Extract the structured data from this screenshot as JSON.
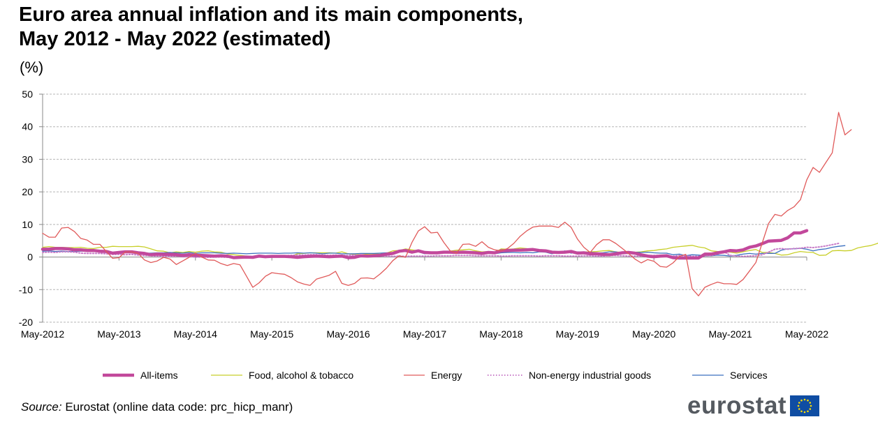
{
  "title": {
    "line1": "Euro area annual inflation and its main components,",
    "line2": "May 2012 - May 2022 (estimated)"
  },
  "unit": "(%)",
  "source": {
    "label": "Source:",
    "text": " Eurostat (online data code: prc_hicp_manr)"
  },
  "logo": {
    "text": "eurostat"
  },
  "colors": {
    "all_items": "#c2489b",
    "food": "#c8cf2a",
    "energy": "#e05a5a",
    "non_energy": "#c87cc8",
    "services": "#3a6fbf",
    "grid": "#b5b5b5",
    "eu_blue": "#0f4da3",
    "eu_star": "#ffdd00"
  },
  "chart_data": {
    "type": "line",
    "title": "Euro area annual inflation and its main components, May 2012 - May 2022 (estimated)",
    "ylabel": "(%)",
    "xlabel": "",
    "ylim": [
      -20,
      50
    ],
    "y_ticks": [
      50,
      40,
      30,
      20,
      10,
      0,
      -10,
      -20
    ],
    "x_tick_labels": [
      "May-2012",
      "May-2013",
      "May-2014",
      "May-2015",
      "May-2016",
      "May-2017",
      "May-2018",
      "May-2019",
      "May-2020",
      "May-2021",
      "May-2022"
    ],
    "grid": true,
    "legend_position": "bottom",
    "x_start": "May-2012",
    "x_end": "May-2022",
    "series": [
      {
        "name": "All-items",
        "style": "thick",
        "values": [
          2.4,
          2.4,
          2.6,
          2.6,
          2.5,
          2.2,
          2.2,
          2.0,
          2.0,
          1.8,
          1.7,
          1.2,
          1.4,
          1.6,
          1.6,
          1.3,
          1.1,
          0.7,
          0.9,
          0.8,
          0.8,
          0.7,
          0.5,
          0.7,
          0.5,
          0.5,
          0.4,
          0.3,
          0.4,
          0.3,
          -0.2,
          -0.1,
          0.0,
          -0.1,
          0.3,
          0.1,
          0.2,
          0.2,
          0.2,
          0.1,
          -0.1,
          0.1,
          0.2,
          0.3,
          0.2,
          0.1,
          0.2,
          0.3,
          -0.2,
          -0.1,
          0.4,
          0.3,
          0.4,
          0.5,
          0.9,
          1.1,
          1.8,
          2.0,
          1.5,
          1.9,
          1.4,
          1.3,
          1.3,
          1.5,
          1.5,
          1.4,
          1.5,
          1.4,
          1.3,
          1.1,
          1.4,
          1.3,
          1.9,
          2.0,
          2.1,
          2.1,
          2.2,
          2.3,
          2.0,
          1.9,
          1.5,
          1.4,
          1.5,
          1.7,
          1.2,
          1.3,
          1.0,
          1.0,
          0.8,
          0.7,
          1.0,
          1.3,
          1.4,
          1.2,
          0.7,
          0.3,
          0.1,
          0.3,
          0.4,
          -0.2,
          -0.3,
          -0.3,
          -0.3,
          -0.3,
          0.9,
          0.9,
          1.3,
          1.6,
          2.0,
          1.9,
          2.2,
          3.0,
          3.4,
          4.1,
          4.9,
          5.0,
          5.1,
          5.9,
          7.4,
          7.4,
          8.1
        ]
      },
      {
        "name": "Food, alcohol & tobacco",
        "style": "thin",
        "values": [
          3.0,
          3.2,
          3.0,
          3.0,
          2.9,
          2.9,
          3.0,
          2.7,
          2.6,
          3.0,
          3.0,
          3.3,
          3.2,
          3.2,
          3.2,
          3.3,
          3.1,
          2.5,
          1.9,
          1.8,
          1.3,
          1.6,
          1.4,
          1.7,
          1.5,
          1.8,
          1.9,
          1.6,
          1.5,
          1.0,
          0.7,
          0.5,
          0.3,
          0.0,
          0.0,
          0.1,
          -0.1,
          0.0,
          0.0,
          0.2,
          1.0,
          1.1,
          1.3,
          1.3,
          1.3,
          1.3,
          1.2,
          1.6,
          1.0,
          0.8,
          0.7,
          0.9,
          1.0,
          0.9,
          1.2,
          1.9,
          2.0,
          2.5,
          2.2,
          1.9,
          1.4,
          1.6,
          1.5,
          1.5,
          1.8,
          2.1,
          2.2,
          2.4,
          1.9,
          1.6,
          1.7,
          1.4,
          2.5,
          2.4,
          2.5,
          2.8,
          2.6,
          2.2,
          2.1,
          2.0,
          1.8,
          1.4,
          1.2,
          1.5,
          1.5,
          1.6,
          1.6,
          1.7,
          1.9,
          2.0,
          1.6,
          1.4,
          1.5,
          1.5,
          1.6,
          1.9,
          2.0,
          2.3,
          2.5,
          3.0,
          3.2,
          3.4,
          3.6,
          3.1,
          2.8,
          1.9,
          1.7,
          1.6,
          1.5,
          1.2,
          1.6,
          2.0,
          2.3,
          1.4,
          1.4,
          1.1,
          0.6,
          0.7,
          1.3,
          1.7,
          1.5,
          1.4,
          0.5,
          0.6,
          1.9,
          2.0,
          1.9,
          2.0,
          2.8,
          3.2,
          3.5,
          4.1,
          5.0,
          6.3,
          7.5
        ]
      },
      {
        "name": "Energy",
        "style": "thin",
        "values": [
          7.3,
          6.1,
          6.1,
          8.9,
          9.1,
          7.8,
          5.7,
          5.2,
          3.9,
          3.9,
          1.7,
          -0.4,
          -0.2,
          1.6,
          1.6,
          1.1,
          -0.9,
          -1.7,
          -1.2,
          -0.1,
          -0.6,
          -2.3,
          -1.2,
          -0.1,
          1.2,
          0.0,
          -0.9,
          -1.0,
          -2.0,
          -2.6,
          -2.0,
          -2.4,
          -5.8,
          -9.3,
          -7.9,
          -5.9,
          -4.8,
          -5.1,
          -5.3,
          -6.3,
          -7.6,
          -8.3,
          -8.7,
          -6.8,
          -6.2,
          -5.6,
          -4.4,
          -8.1,
          -8.7,
          -8.1,
          -6.5,
          -6.4,
          -6.7,
          -5.2,
          -3.4,
          -1.1,
          0.4,
          -0.1,
          4.5,
          8.0,
          9.3,
          7.4,
          7.6,
          4.5,
          1.9,
          1.2,
          3.9,
          4.0,
          3.3,
          4.7,
          3.0,
          2.2,
          1.9,
          2.6,
          4.2,
          6.4,
          8.0,
          9.2,
          9.5,
          9.5,
          9.5,
          9.1,
          10.7,
          9.1,
          5.5,
          3.0,
          1.4,
          3.8,
          5.3,
          5.3,
          4.2,
          2.7,
          1.1,
          -0.6,
          -1.8,
          -0.8,
          -1.3,
          -2.9,
          -3.1,
          -1.8,
          0.2,
          0.8,
          -9.7,
          -11.9,
          -9.3,
          -8.4,
          -7.7,
          -8.2,
          -8.2,
          -8.4,
          -6.9,
          -4.3,
          -1.7,
          4.3,
          10.3,
          13.1,
          12.6,
          14.3,
          15.4,
          17.6,
          23.7,
          27.5,
          26.0,
          29.0,
          32.0,
          44.4,
          37.5,
          39.1
        ]
      },
      {
        "name": "Non-energy industrial goods",
        "style": "dotted",
        "values": [
          1.4,
          1.5,
          1.4,
          1.6,
          1.6,
          1.5,
          1.2,
          1.1,
          1.1,
          1.1,
          1.0,
          0.8,
          0.8,
          0.7,
          0.8,
          0.6,
          0.5,
          0.4,
          0.3,
          0.2,
          0.2,
          0.3,
          0.1,
          0.1,
          0.0,
          0.0,
          -0.1,
          0.0,
          0.0,
          -0.1,
          -0.2,
          -0.3,
          -0.2,
          0.0,
          0.0,
          0.2,
          0.3,
          0.4,
          0.4,
          0.5,
          0.6,
          0.6,
          0.7,
          0.7,
          0.6,
          0.5,
          0.6,
          0.5,
          0.5,
          0.6,
          0.5,
          0.5,
          0.4,
          0.3,
          0.3,
          0.2,
          0.3,
          0.2,
          0.3,
          0.3,
          0.3,
          0.3,
          0.4,
          0.4,
          0.4,
          0.5,
          0.5,
          0.5,
          0.4,
          0.4,
          0.4,
          0.4,
          0.3,
          0.3,
          0.4,
          0.4,
          0.4,
          0.4,
          0.3,
          0.4,
          0.4,
          0.4,
          0.3,
          0.3,
          0.3,
          0.4,
          0.4,
          0.3,
          0.3,
          0.5,
          0.5,
          0.4,
          0.3,
          0.3,
          0.3,
          0.4,
          0.5,
          0.5,
          0.4,
          0.2,
          0.5,
          0.3,
          0.2,
          0.2,
          0.3,
          0.5,
          0.9,
          1.6,
          0.5,
          0.3,
          0.2,
          0.3,
          0.4,
          0.7,
          1.5,
          2.4,
          2.6,
          2.4,
          2.6,
          2.7,
          3.0,
          2.9,
          3.1,
          3.4,
          3.8,
          4.2
        ]
      },
      {
        "name": "Services",
        "style": "thin",
        "values": [
          1.8,
          1.9,
          1.7,
          1.8,
          1.7,
          1.7,
          1.8,
          1.8,
          1.7,
          1.7,
          1.6,
          1.4,
          1.4,
          1.5,
          1.4,
          1.4,
          1.2,
          1.2,
          1.3,
          1.3,
          1.4,
          1.3,
          1.2,
          1.4,
          1.1,
          1.3,
          1.3,
          1.3,
          1.2,
          1.1,
          1.2,
          1.1,
          1.0,
          1.1,
          1.2,
          1.2,
          1.2,
          1.1,
          1.2,
          1.2,
          1.3,
          1.2,
          1.3,
          1.2,
          1.0,
          1.2,
          1.2,
          1.0,
          1.0,
          1.0,
          1.1,
          1.1,
          1.1,
          1.2,
          1.3,
          1.3,
          1.6,
          1.8,
          1.3,
          1.6,
          1.0,
          1.3,
          1.5,
          1.6,
          1.6,
          1.5,
          1.3,
          1.4,
          1.3,
          1.4,
          1.2,
          1.0,
          1.3,
          1.4,
          1.4,
          1.3,
          1.4,
          1.3,
          1.6,
          1.5,
          1.0,
          1.5,
          1.9,
          1.2,
          1.6,
          1.5,
          1.5,
          1.3,
          1.3,
          1.6,
          1.6,
          1.2,
          1.5,
          1.5,
          1.4,
          1.5,
          1.3,
          1.2,
          1.2,
          0.7,
          0.9,
          0.4,
          0.7,
          0.6,
          0.4,
          0.4,
          0.6,
          0.5,
          0.3,
          0.5,
          0.9,
          1.1,
          0.9,
          1.1,
          1.1,
          1.1,
          2.1,
          2.5,
          2.5,
          2.7,
          2.4,
          1.9,
          2.3,
          2.5,
          3.0,
          3.3,
          3.5
        ]
      }
    ]
  },
  "legend": {
    "items": [
      {
        "label": "All-items",
        "style": "thick",
        "color_key": "all_items"
      },
      {
        "label": "Food, alcohol & tobacco",
        "style": "thin",
        "color_key": "food"
      },
      {
        "label": "Energy",
        "style": "thin",
        "color_key": "energy"
      },
      {
        "label": "Non-energy industrial goods",
        "style": "dotted",
        "color_key": "non_energy"
      },
      {
        "label": "Services",
        "style": "thin",
        "color_key": "services"
      }
    ]
  }
}
